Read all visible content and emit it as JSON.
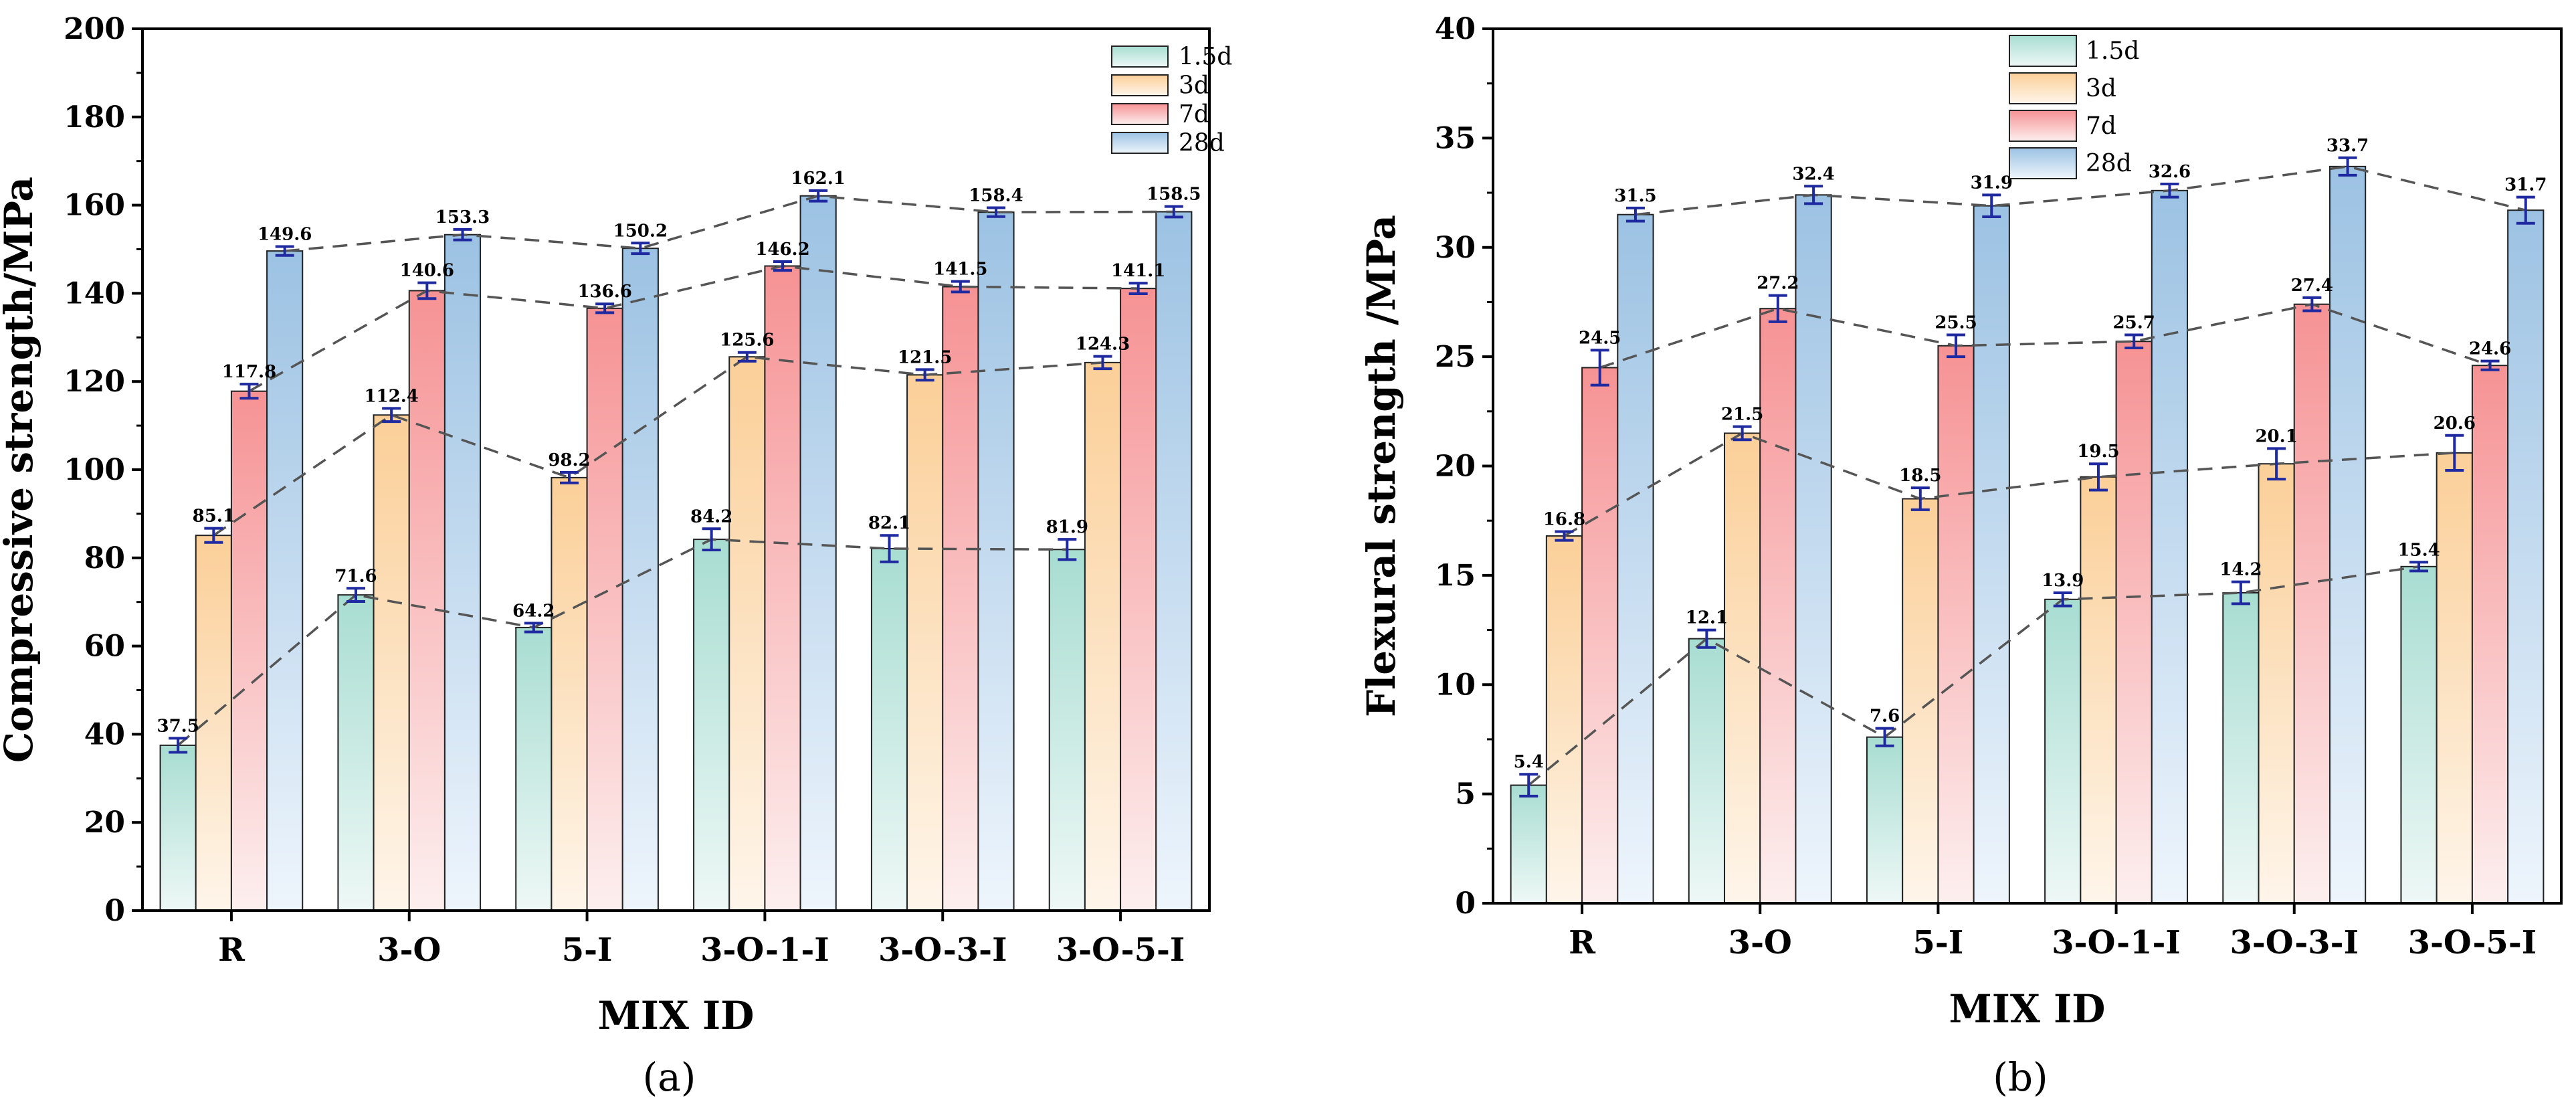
{
  "chart_data": [
    {
      "type": "bar",
      "title": "",
      "subfigure_label": "(a)",
      "xlabel": "MIX ID",
      "ylabel": "Compressive strength/MPa",
      "ylim": [
        0,
        200
      ],
      "yticks": [
        "0",
        "20",
        "40",
        "60",
        "80",
        "100",
        "120",
        "140",
        "160",
        "180",
        "200"
      ],
      "categories": [
        "R",
        "3-O",
        "5-I",
        "3-O-1-I",
        "3-O-3-I",
        "3-O-5-I"
      ],
      "legend_position": "top-right",
      "series": [
        {
          "name": "1.5d",
          "values": [
            37.5,
            71.6,
            64.2,
            84.2,
            82.1,
            81.9
          ],
          "labels": [
            "37.5",
            "71.6",
            "64.2",
            "84.2",
            "82.1",
            "81.9"
          ],
          "errors": [
            1.6,
            1.5,
            1.0,
            2.4,
            3.0,
            2.3
          ]
        },
        {
          "name": "3d",
          "values": [
            85.1,
            112.4,
            98.2,
            125.6,
            121.5,
            124.3
          ],
          "labels": [
            "85.1",
            "112.4",
            "98.2",
            "125.6",
            "121.5",
            "124.3"
          ],
          "errors": [
            1.6,
            1.5,
            1.2,
            1.0,
            1.2,
            1.4
          ]
        },
        {
          "name": "7d",
          "values": [
            117.8,
            140.6,
            136.6,
            146.2,
            141.5,
            141.1
          ],
          "labels": [
            "117.8",
            "140.6",
            "136.6",
            "146.2",
            "141.5",
            "141.1"
          ],
          "errors": [
            1.6,
            1.8,
            1.0,
            1.0,
            1.2,
            1.2
          ]
        },
        {
          "name": "28d",
          "values": [
            149.6,
            153.3,
            150.2,
            162.1,
            158.4,
            158.5
          ],
          "labels": [
            "149.6",
            "153.3",
            "150.2",
            "162.1",
            "158.4",
            "158.5"
          ],
          "errors": [
            1.0,
            1.2,
            1.2,
            1.2,
            1.0,
            1.2
          ]
        }
      ],
      "colors": {
        "1.5d": [
          "#a8ddd2",
          "#eef8f6"
        ],
        "3d": [
          "#fbcf98",
          "#fef5ea"
        ],
        "7d": [
          "#f69294",
          "#fdefef"
        ],
        "28d": [
          "#9cc2e3",
          "#eef5fc"
        ],
        "trend_line": "#555555",
        "error_bar": "#1f2aa0"
      }
    },
    {
      "type": "bar",
      "title": "",
      "subfigure_label": "(b)",
      "xlabel": "MIX ID",
      "ylabel": "Flexural strength /MPa",
      "ylim": [
        0,
        40
      ],
      "yticks": [
        "0",
        "5",
        "10",
        "15",
        "20",
        "25",
        "30",
        "35",
        "40"
      ],
      "categories": [
        "R",
        "3-O",
        "5-I",
        "3-O-1-I",
        "3-O-3-I",
        "3-O-5-I"
      ],
      "legend_position": "top-center",
      "series": [
        {
          "name": "1.5d",
          "values": [
            5.4,
            12.1,
            7.6,
            13.9,
            14.2,
            15.4
          ],
          "labels": [
            "5.4",
            "12.1",
            "7.6",
            "13.9",
            "14.2",
            "15.4"
          ],
          "errors": [
            0.5,
            0.4,
            0.4,
            0.3,
            0.5,
            0.2
          ]
        },
        {
          "name": "3d",
          "values": [
            16.8,
            21.5,
            18.5,
            19.5,
            20.1,
            20.6
          ],
          "labels": [
            "16.8",
            "21.5",
            "18.5",
            "19.5",
            "20.1",
            "20.6"
          ],
          "errors": [
            0.2,
            0.3,
            0.5,
            0.6,
            0.7,
            0.8
          ]
        },
        {
          "name": "7d",
          "values": [
            24.5,
            27.2,
            25.5,
            25.7,
            27.4,
            24.6
          ],
          "labels": [
            "24.5",
            "27.2",
            "25.5",
            "25.7",
            "27.4",
            "24.6"
          ],
          "errors": [
            0.8,
            0.6,
            0.5,
            0.3,
            0.3,
            0.2
          ]
        },
        {
          "name": "28d",
          "values": [
            31.5,
            32.4,
            31.9,
            32.6,
            33.7,
            31.7
          ],
          "labels": [
            "31.5",
            "32.4",
            "31.9",
            "32.6",
            "33.7",
            "31.7"
          ],
          "errors": [
            0.3,
            0.4,
            0.5,
            0.3,
            0.4,
            0.6
          ]
        }
      ],
      "colors": {
        "1.5d": [
          "#a8ddd2",
          "#eef8f6"
        ],
        "3d": [
          "#fbcf98",
          "#fef5ea"
        ],
        "7d": [
          "#f69294",
          "#fdefef"
        ],
        "28d": [
          "#9cc2e3",
          "#eef5fc"
        ],
        "trend_line": "#555555",
        "error_bar": "#1f2aa0"
      }
    }
  ]
}
